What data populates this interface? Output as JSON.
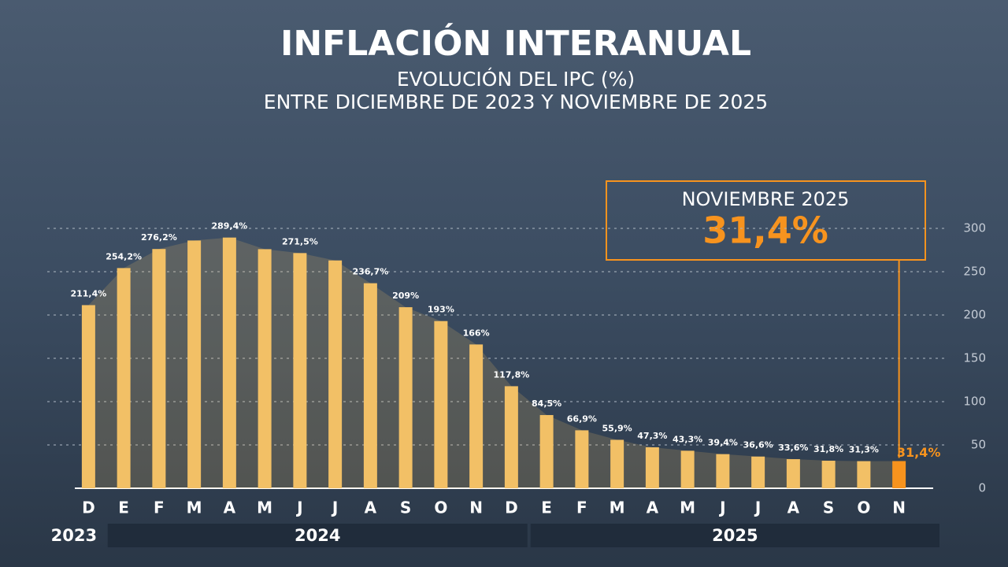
{
  "chart_data": {
    "type": "bar",
    "title": "INFLACIÓN INTERANUAL",
    "subtitle": [
      "EVOLUCIÓN DEL IPC (%)",
      "ENTRE DICIEMBRE DE 2023 Y NOVIEMBRE DE 2025"
    ],
    "callout": {
      "title": "NOVIEMBRE 2025",
      "value_label": "31,4%"
    },
    "categories": [
      "D",
      "E",
      "F",
      "M",
      "A",
      "M",
      "J",
      "J",
      "A",
      "S",
      "O",
      "N",
      "D",
      "E",
      "F",
      "M",
      "A",
      "M",
      "J",
      "J",
      "A",
      "S",
      "O",
      "N"
    ],
    "years": [
      "2023",
      "2024",
      "2025"
    ],
    "values": [
      211.4,
      254.2,
      276.2,
      286,
      289.4,
      276,
      271.5,
      263,
      236.7,
      209,
      193,
      166,
      117.8,
      84.5,
      66.9,
      55.9,
      47.3,
      43.3,
      39.4,
      36.6,
      33.6,
      31.8,
      31.3,
      31.4
    ],
    "value_labels": [
      "211,4%",
      "254,2%",
      "276,2%",
      null,
      "289,4%",
      null,
      "271,5%",
      null,
      "236,7%",
      "209%",
      "193%",
      "166%",
      "117,8%",
      "84,5%",
      "66,9%",
      "55,9%",
      "47,3%",
      "43,3%",
      "39,4%",
      "36,6%",
      "33,6%",
      "31,8%",
      "31,3%",
      "31,4%"
    ],
    "colors": [
      "#f2c066",
      "#f2c066",
      "#f2c066",
      "#f2c066",
      "#f2c066",
      "#f2c066",
      "#f2c066",
      "#f2c066",
      "#f2c066",
      "#f2c066",
      "#f2c066",
      "#f2c066",
      "#f2c066",
      "#f2c066",
      "#f2c066",
      "#f2c066",
      "#f2c066",
      "#f2c066",
      "#f2c066",
      "#f2c066",
      "#f2c066",
      "#f2c066",
      "#f2c066",
      "#f7931e"
    ],
    "ylim": [
      0,
      300
    ],
    "yticks": [
      0,
      50,
      100,
      150,
      200,
      250,
      300
    ],
    "grid": true
  }
}
